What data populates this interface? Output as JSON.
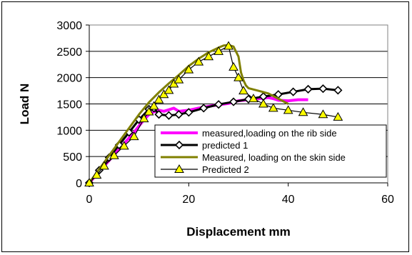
{
  "chart_data": {
    "type": "line",
    "title": "",
    "xlabel": "Displacement mm",
    "ylabel": "Load N",
    "xlim": [
      0,
      60
    ],
    "ylim": [
      0,
      3000
    ],
    "x_ticks": [
      "0",
      "20",
      "40",
      "60"
    ],
    "y_ticks": [
      "0",
      "500",
      "1000",
      "1500",
      "2000",
      "2500",
      "3000"
    ],
    "grid": "horizontal",
    "legend_position": "lower-right",
    "series": [
      {
        "name": "measured,loading on the rib side",
        "color": "#ff00ff",
        "marker": "none",
        "x": [
          0,
          3,
          6,
          9,
          11,
          12,
          13,
          14,
          15,
          16,
          17,
          18,
          20,
          22,
          25,
          28,
          30,
          32,
          34,
          36,
          37,
          38,
          40,
          42,
          44
        ],
        "y": [
          0,
          320,
          640,
          960,
          1200,
          1300,
          1350,
          1380,
          1360,
          1390,
          1420,
          1360,
          1380,
          1420,
          1470,
          1510,
          1560,
          1580,
          1600,
          1620,
          1600,
          1570,
          1560,
          1580,
          1580
        ]
      },
      {
        "name": "predicted 1",
        "color": "#000000",
        "marker": "diamond",
        "x": [
          0,
          2,
          4,
          6,
          8,
          10,
          12,
          13,
          14,
          16,
          18,
          20,
          23,
          26,
          29,
          32,
          35,
          38,
          41,
          44,
          47,
          50
        ],
        "y": [
          0,
          240,
          480,
          720,
          960,
          1200,
          1400,
          1420,
          1300,
          1280,
          1300,
          1340,
          1420,
          1490,
          1540,
          1590,
          1640,
          1680,
          1730,
          1780,
          1790,
          1760
        ]
      },
      {
        "name": "Measured, loading on the skin side",
        "color": "#808000",
        "marker": "none",
        "x": [
          0,
          2,
          4,
          6,
          8,
          10,
          12,
          14,
          16,
          18,
          20,
          22,
          24,
          26,
          27,
          28,
          29,
          30,
          30.5,
          31,
          31.5,
          32,
          34,
          36,
          38,
          40
        ],
        "y": [
          0,
          260,
          520,
          780,
          1040,
          1300,
          1530,
          1720,
          1890,
          2050,
          2220,
          2360,
          2480,
          2570,
          2610,
          2620,
          2590,
          2400,
          2100,
          1950,
          1850,
          1800,
          1750,
          1700,
          1600,
          1500
        ]
      },
      {
        "name": "Predicted 2",
        "color": "#000000",
        "marker": "triangle",
        "x": [
          0,
          1.5,
          3,
          5,
          7,
          9,
          11,
          12,
          13,
          14,
          15,
          16,
          17,
          18,
          20,
          22,
          24,
          26,
          28,
          29,
          30,
          31,
          33,
          35,
          37,
          40,
          43,
          47,
          50
        ],
        "y": [
          0,
          150,
          320,
          520,
          700,
          880,
          1220,
          1350,
          1460,
          1580,
          1680,
          1760,
          1880,
          1960,
          2150,
          2300,
          2400,
          2500,
          2600,
          2200,
          2000,
          1750,
          1600,
          1500,
          1420,
          1380,
          1340,
          1300,
          1250
        ]
      }
    ]
  }
}
